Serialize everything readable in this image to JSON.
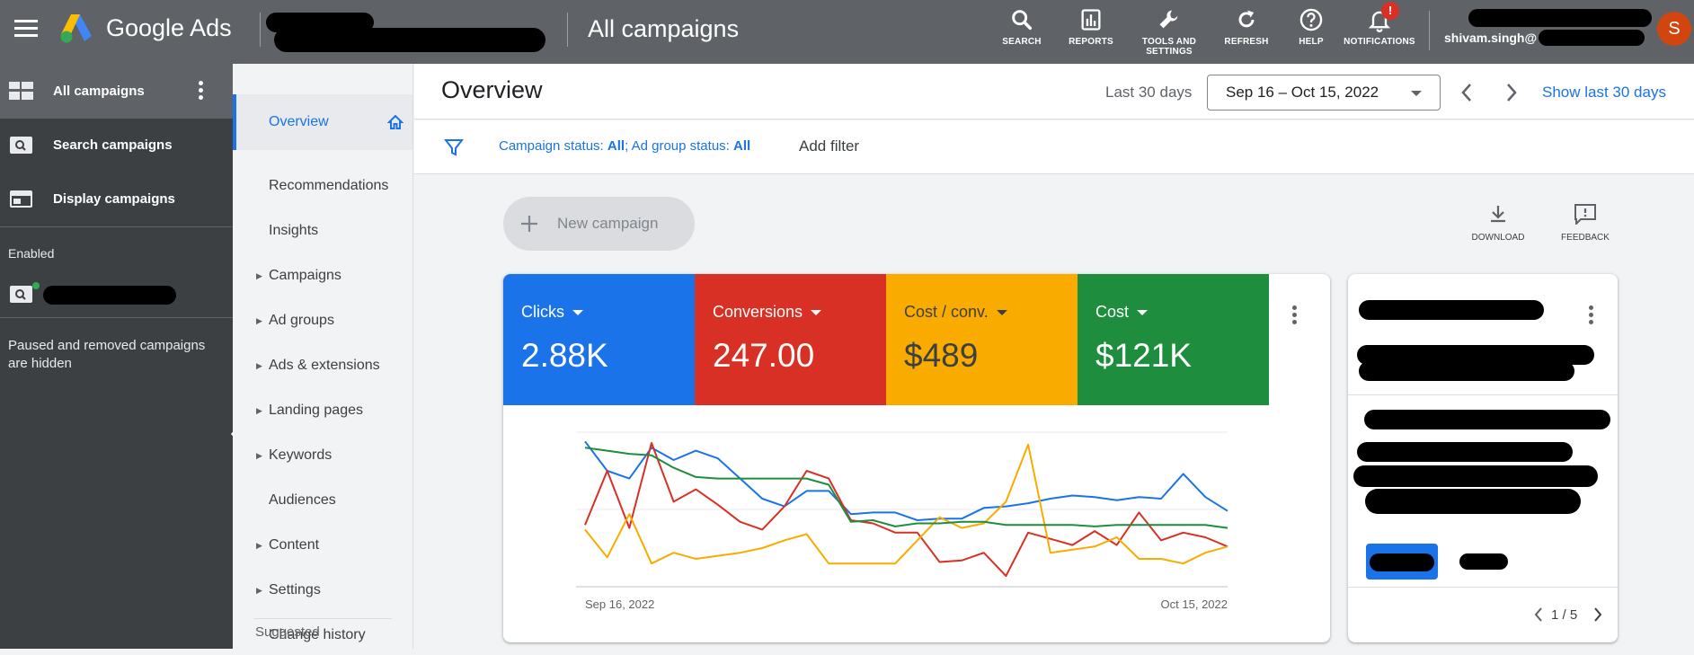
{
  "topbar": {
    "app_name": "Google Ads",
    "page_title": "All campaigns",
    "tools": [
      {
        "label": "SEARCH",
        "icon": "search-icon"
      },
      {
        "label": "REPORTS",
        "icon": "reports-icon"
      },
      {
        "label": "TOOLS AND SETTINGS",
        "icon": "wrench-icon"
      },
      {
        "label": "REFRESH",
        "icon": "refresh-icon"
      },
      {
        "label": "HELP",
        "icon": "help-icon"
      },
      {
        "label": "NOTIFICATIONS",
        "icon": "bell-icon"
      }
    ],
    "notification_badge": "!",
    "user_email": "shivam.singh@",
    "avatar_letter": "S"
  },
  "leftnav": {
    "items": [
      {
        "label": "All campaigns",
        "icon": "grid-icon"
      },
      {
        "label": "Search campaigns",
        "icon": "search-campaign-icon"
      },
      {
        "label": "Display campaigns",
        "icon": "display-campaign-icon"
      }
    ],
    "enabled_label": "Enabled",
    "hidden_note": "Paused and removed campaigns are hidden"
  },
  "subnav": {
    "items": [
      {
        "label": "Overview",
        "has_arrow": false
      },
      {
        "label": "Recommendations",
        "has_arrow": false
      },
      {
        "label": "Insights",
        "has_arrow": false
      },
      {
        "label": "Campaigns",
        "has_arrow": true
      },
      {
        "label": "Ad groups",
        "has_arrow": true
      },
      {
        "label": "Ads & extensions",
        "has_arrow": true
      },
      {
        "label": "Landing pages",
        "has_arrow": true
      },
      {
        "label": "Keywords",
        "has_arrow": true
      },
      {
        "label": "Audiences",
        "has_arrow": false
      },
      {
        "label": "Content",
        "has_arrow": true
      },
      {
        "label": "Settings",
        "has_arrow": true
      },
      {
        "label": "Change history",
        "has_arrow": false
      }
    ],
    "suggested_label": "Suggested"
  },
  "header": {
    "title": "Overview",
    "range_label": "Last 30 days",
    "date_range": "Sep 16 – Oct 15, 2022",
    "show_last_label": "Show last 30 days"
  },
  "filter": {
    "campaign_status_label": "Campaign status: ",
    "campaign_status_value": "All",
    "separator": "; ",
    "ad_group_status_label": "Ad group status: ",
    "ad_group_status_value": "All",
    "add_filter": "Add filter"
  },
  "actions": {
    "new_campaign": "New campaign",
    "download": "DOWNLOAD",
    "feedback": "FEEDBACK"
  },
  "metrics": [
    {
      "label": "Clicks",
      "value": "2.88K",
      "color": "#1a73e8"
    },
    {
      "label": "Conversions",
      "value": "247.00",
      "color": "#d93025"
    },
    {
      "label": "Cost / conv.",
      "value": "$489",
      "color": "#f9ab00"
    },
    {
      "label": "Cost",
      "value": "$121K",
      "color": "#1e8e3e"
    }
  ],
  "pager": "1 / 5",
  "chart_data": {
    "type": "line",
    "x_start_label": "Sep 16, 2022",
    "x_end_label": "Oct 15, 2022",
    "ylim": [
      0,
      100
    ],
    "series": [
      {
        "color": "#1a73e8",
        "values": [
          94,
          75,
          70,
          90,
          82,
          88,
          83,
          70,
          57,
          52,
          62,
          62,
          47,
          48,
          48,
          43,
          44,
          44,
          51,
          52,
          54,
          57,
          59,
          58,
          56,
          58,
          57,
          73,
          58,
          49
        ]
      },
      {
        "color": "#d93025",
        "values": [
          40,
          75,
          38,
          93,
          55,
          63,
          53,
          42,
          37,
          52,
          75,
          70,
          43,
          41,
          35,
          35,
          16,
          17,
          22,
          7,
          35,
          31,
          27,
          36,
          27,
          48,
          30,
          35,
          32,
          26
        ]
      },
      {
        "color": "#f9ab00",
        "values": [
          37,
          19,
          47,
          15,
          22,
          18,
          20,
          22,
          25,
          30,
          34,
          15,
          15,
          15,
          15,
          30,
          45,
          38,
          41,
          55,
          92,
          22,
          24,
          26,
          32,
          18,
          18,
          15,
          22,
          26
        ]
      },
      {
        "color": "#1e8e3e",
        "values": [
          90,
          88,
          86,
          85,
          77,
          71,
          70,
          70,
          70,
          70,
          70,
          66,
          42,
          43,
          39,
          41,
          41,
          42,
          42,
          40,
          40,
          40,
          40,
          39,
          40,
          40,
          40,
          40,
          40,
          38
        ]
      }
    ]
  }
}
